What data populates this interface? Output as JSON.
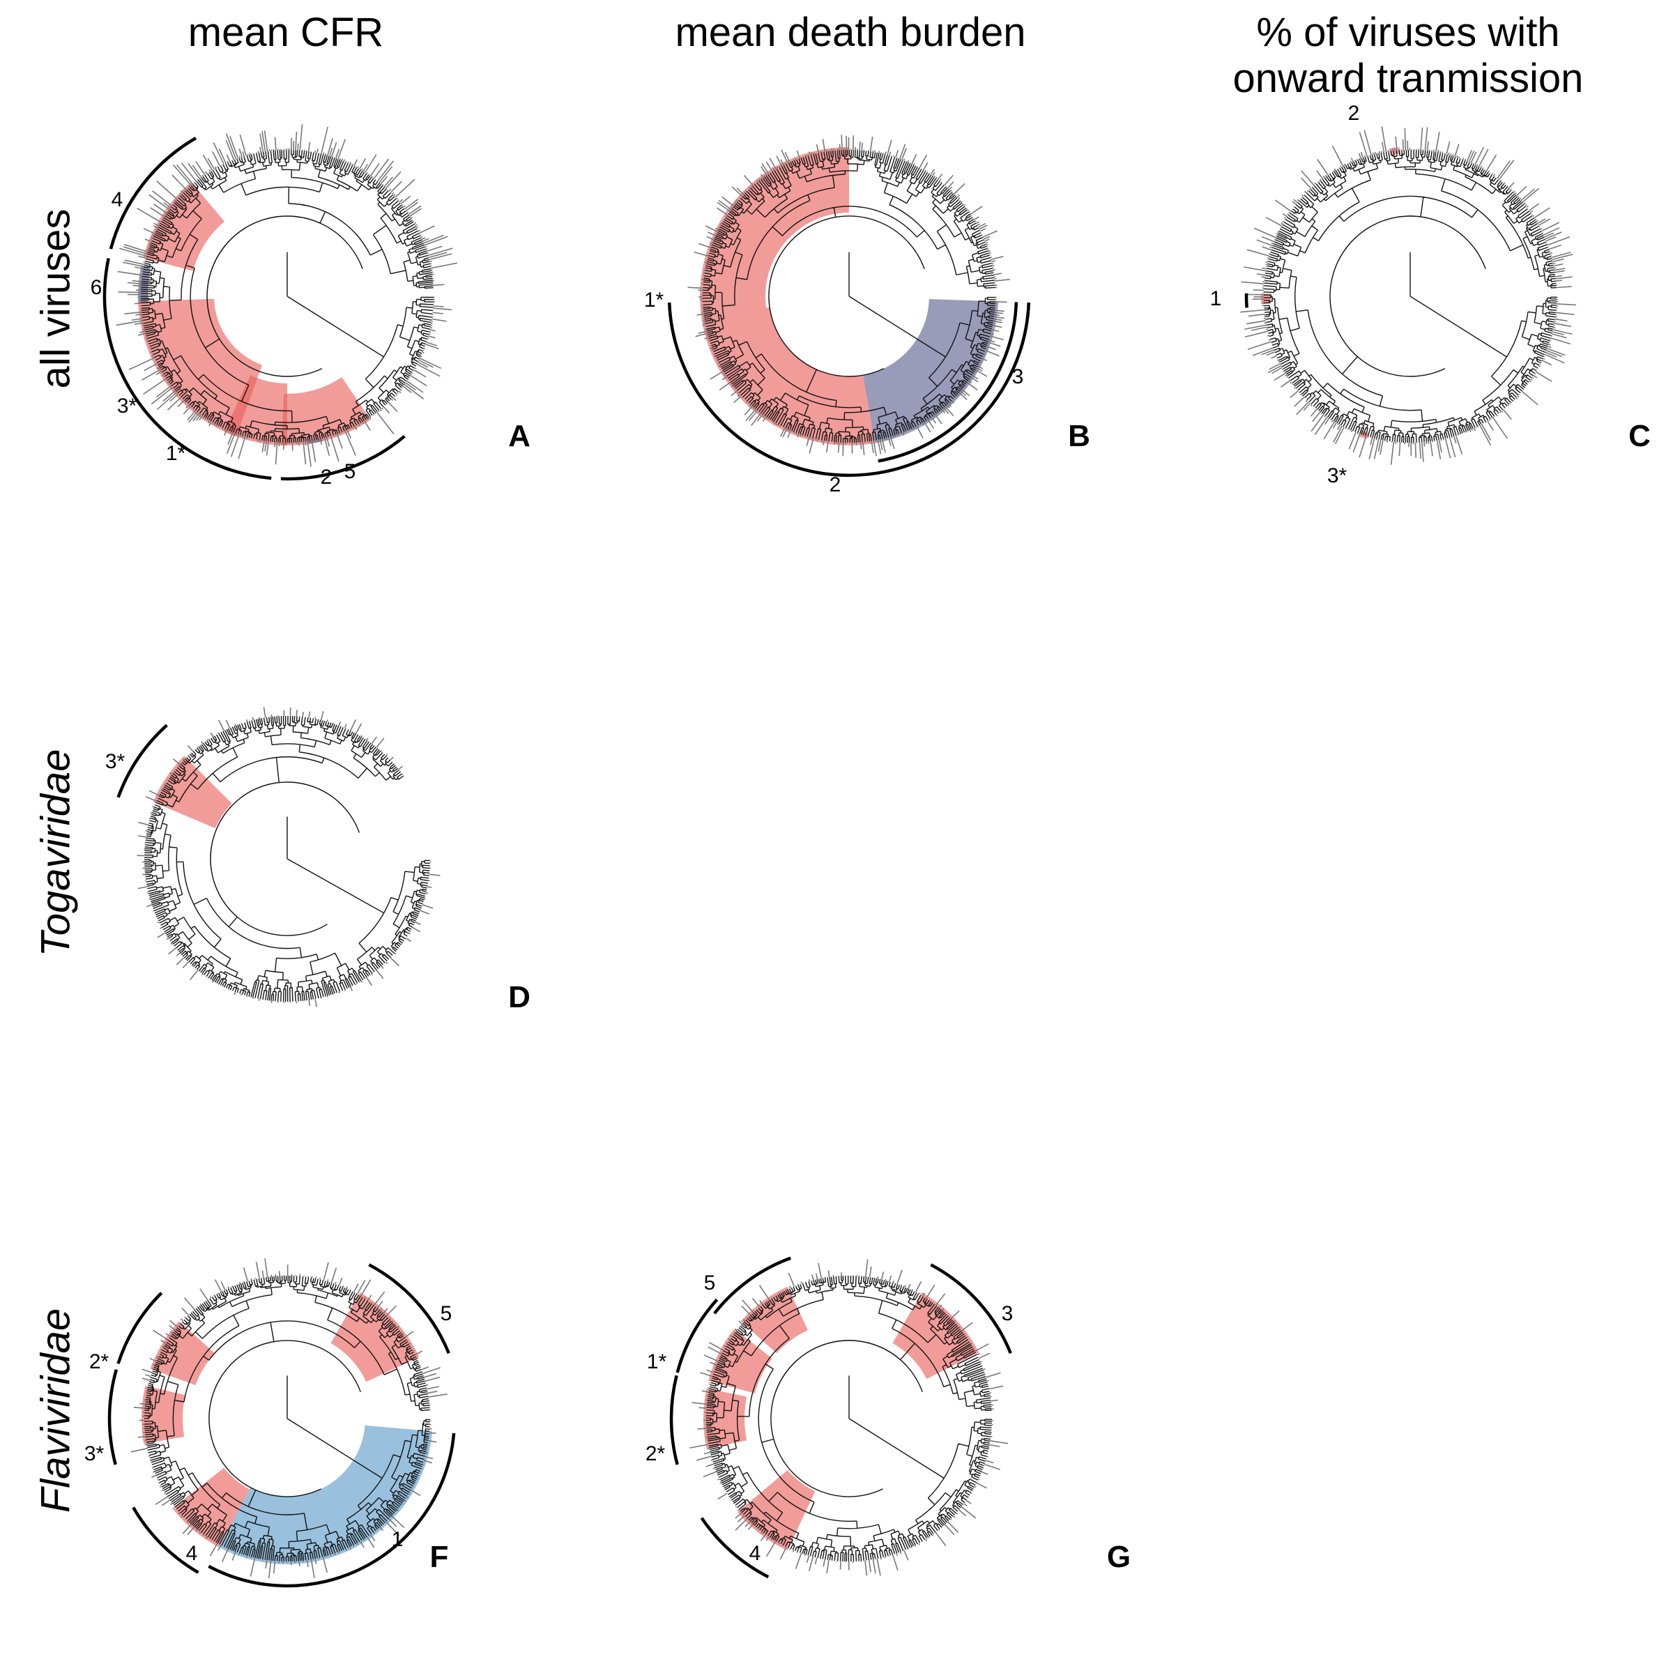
{
  "columns": [
    "mean CFR",
    "mean death burden",
    "% of viruses with onward tranmission"
  ],
  "rows": [
    "all viruses",
    "Togaviridae",
    "Flaviviridae"
  ],
  "colors": {
    "red": "#e8605a",
    "navy": "#5a5d8e",
    "blue": "#5b9bc8",
    "branch": "#111111",
    "tip": "#777777"
  },
  "panels": [
    {
      "letter": "A",
      "column": "mean CFR",
      "row": "all viruses",
      "tips": 1100,
      "clades": [
        {
          "label": "4",
          "color": "red"
        },
        {
          "label": "6",
          "color": "navy"
        },
        {
          "label": "3*",
          "color": "red"
        },
        {
          "label": "1*",
          "color": "red"
        },
        {
          "label": "2",
          "color": "red"
        },
        {
          "label": "5",
          "color": "navy"
        }
      ]
    },
    {
      "letter": "B",
      "column": "mean death burden",
      "row": "all viruses",
      "tips": 1100,
      "clades": [
        {
          "label": "1*",
          "color": "red"
        },
        {
          "label": "2",
          "color": "red"
        },
        {
          "label": "3",
          "color": "navy"
        }
      ]
    },
    {
      "letter": "C",
      "column": "% of viruses with onward tranmission",
      "row": "all viruses",
      "tips": 1100,
      "clades": [
        {
          "label": "1",
          "color": "red"
        },
        {
          "label": "2",
          "color": "red"
        },
        {
          "label": "3*",
          "color": "red"
        }
      ]
    },
    {
      "letter": "D",
      "column": "mean CFR",
      "row": "Togaviridae",
      "tips": 130,
      "clades": [
        {
          "label": "3*",
          "color": "red"
        }
      ]
    },
    {
      "letter": "F",
      "column": "mean CFR",
      "row": "Flaviviridae",
      "tips": 220,
      "clades": [
        {
          "label": "5",
          "color": "red"
        },
        {
          "label": "2*",
          "color": "red"
        },
        {
          "label": "3*",
          "color": "red"
        },
        {
          "label": "4",
          "color": "red"
        },
        {
          "label": "1",
          "color": "blue"
        }
      ]
    },
    {
      "letter": "G",
      "column": "mean death burden",
      "row": "Flaviviridae",
      "tips": 220,
      "clades": [
        {
          "label": "5",
          "color": "red"
        },
        {
          "label": "3",
          "color": "red"
        },
        {
          "label": "1*",
          "color": "red"
        },
        {
          "label": "2*",
          "color": "red"
        },
        {
          "label": "4",
          "color": "red"
        }
      ]
    }
  ]
}
